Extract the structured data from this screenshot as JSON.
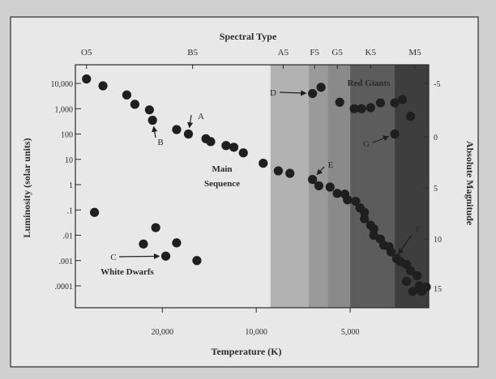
{
  "chart_data": {
    "type": "scatter",
    "title": "Spectral Type",
    "xlabel": "Temperature (K)",
    "ylabel": "Luminosity (solar units)",
    "y2label": "Absolute Magnitude",
    "x_axis": {
      "scale": "log",
      "reversed": true,
      "ticks": [
        20000,
        10000,
        5000
      ],
      "tick_labels": [
        "20,000",
        "10,000",
        "5,000"
      ],
      "range_k": [
        2800,
        38000
      ]
    },
    "y_axis": {
      "scale": "log",
      "ticks": [
        10000,
        1000,
        100,
        10,
        1,
        0.1,
        0.01,
        0.001,
        0.0001
      ],
      "tick_labels": [
        "10,000",
        "1,000",
        "100",
        "10",
        "1",
        ".1",
        ".01",
        ".001",
        ".0001"
      ]
    },
    "y2_axis": {
      "tick_labels": [
        "-5",
        "0",
        "5",
        "10",
        "15"
      ]
    },
    "spectral_types": {
      "labels": [
        "O5",
        "B5",
        "A5",
        "F5",
        "G5",
        "K5",
        "M5"
      ],
      "temps_k": [
        35000,
        16000,
        8200,
        6500,
        5500,
        4300,
        3100
      ]
    },
    "grid": false,
    "legend": null,
    "background_bands": [
      {
        "from_k": 9000,
        "to_k": 6800,
        "color": "#b2b2b2"
      },
      {
        "from_k": 6800,
        "to_k": 5900,
        "color": "#9a9a9a"
      },
      {
        "from_k": 5900,
        "to_k": 5000,
        "color": "#8a8a8a"
      },
      {
        "from_k": 5000,
        "to_k": 3600,
        "color": "#5c5c5c"
      },
      {
        "from_k": 3600,
        "to_k": 2800,
        "color": "#3e3e3e"
      }
    ],
    "region_labels": [
      "Main",
      "Sequence",
      "Red Giants",
      "White Dwarfs"
    ],
    "series": [
      {
        "points": [
          [
            35000,
            15000
          ],
          [
            31000,
            8000
          ],
          [
            26000,
            3500
          ],
          [
            24500,
            1500
          ],
          [
            22000,
            900
          ],
          [
            21500,
            350
          ],
          [
            18000,
            150
          ],
          [
            16500,
            100
          ],
          [
            14500,
            65
          ],
          [
            14000,
            50
          ],
          [
            12500,
            35
          ],
          [
            11800,
            30
          ],
          [
            11000,
            18
          ],
          [
            9500,
            7
          ],
          [
            8500,
            3.5
          ],
          [
            7800,
            2.8
          ],
          [
            6600,
            1.6
          ],
          [
            6300,
            0.9
          ],
          [
            5800,
            0.8
          ],
          [
            5500,
            0.45
          ],
          [
            5200,
            0.42
          ],
          [
            5100,
            0.25
          ],
          [
            4800,
            0.22
          ],
          [
            4650,
            0.12
          ],
          [
            4500,
            0.08
          ],
          [
            4500,
            0.045
          ],
          [
            4300,
            0.025
          ],
          [
            4200,
            0.018
          ],
          [
            4200,
            0.01
          ],
          [
            4000,
            0.007
          ],
          [
            3900,
            0.004
          ],
          [
            3750,
            0.0035
          ],
          [
            3700,
            0.0022
          ],
          [
            3550,
            0.0012
          ],
          [
            3450,
            0.0009
          ],
          [
            3300,
            0.0007
          ],
          [
            3200,
            0.0004
          ],
          [
            3050,
            0.00025
          ],
          [
            3300,
            0.00015
          ],
          [
            3000,
            0.0001
          ],
          [
            2950,
            6e-05
          ],
          [
            3150,
            6e-05
          ],
          [
            2850,
            9e-05
          ],
          [
            6600,
            4000
          ],
          [
            6200,
            7000
          ],
          [
            5400,
            1800
          ],
          [
            4850,
            1000
          ],
          [
            4600,
            1000
          ],
          [
            4300,
            1100
          ],
          [
            4000,
            1700
          ],
          [
            3600,
            1700
          ],
          [
            3400,
            2300
          ],
          [
            3200,
            500
          ],
          [
            3600,
            100
          ],
          [
            33000,
            0.08
          ],
          [
            23000,
            0.0045
          ],
          [
            21000,
            0.02
          ],
          [
            19500,
            0.0015
          ],
          [
            18000,
            0.005
          ],
          [
            15500,
            0.001
          ]
        ]
      }
    ],
    "annotations": [
      {
        "text": "A",
        "point": [
          16500,
          100
        ]
      },
      {
        "text": "B",
        "point": [
          21500,
          350
        ]
      },
      {
        "text": "C",
        "point": [
          19500,
          0.0015
        ]
      },
      {
        "text": "D",
        "point": [
          6600,
          4000
        ]
      },
      {
        "text": "E",
        "point": [
          6600,
          1.6
        ]
      },
      {
        "text": "F",
        "point": [
          3600,
          0.0011
        ]
      },
      {
        "text": "G",
        "point": [
          3600,
          100
        ]
      }
    ]
  }
}
